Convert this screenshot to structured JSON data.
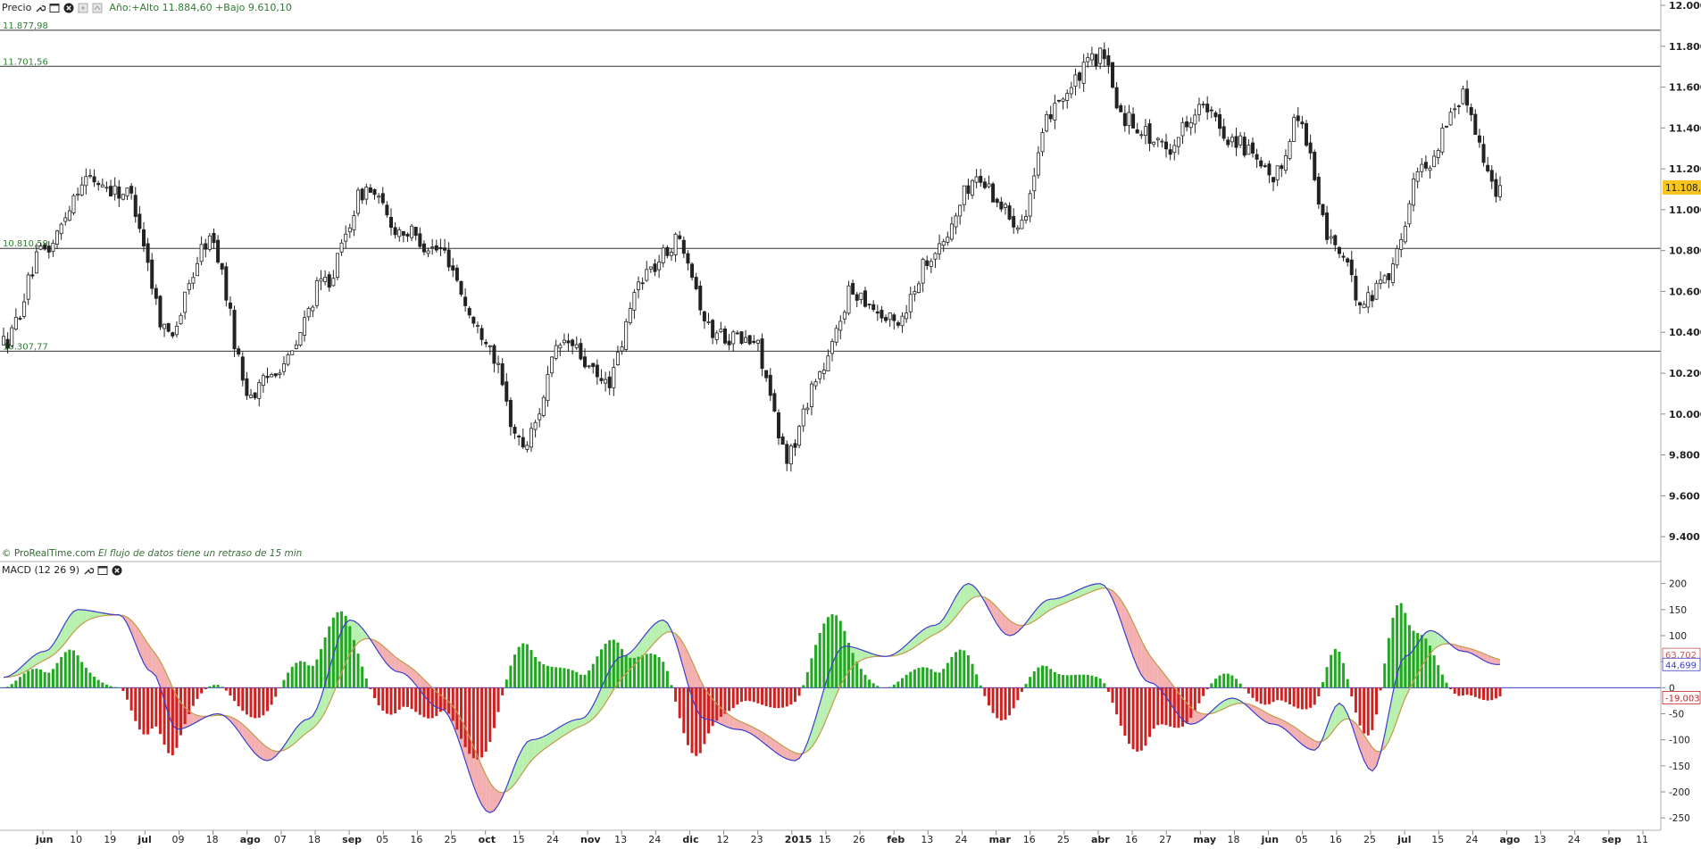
{
  "price_panel": {
    "title": "Precio",
    "info": "Año:+Alto 11.884,60 +Bajo 9.610,10",
    "last_price": "11.108,7",
    "footer_source": "© ProRealTime.com",
    "footer_delay": "El flujo de datos tiene un retraso de 15 min"
  },
  "macd_panel": {
    "title": "MACD (12 26 9)",
    "value_signal": "63,702",
    "value_macd": "44,699",
    "value_hist": "-19,003"
  },
  "colors": {
    "up_candle": "#ffffff",
    "down_candle": "#222222",
    "macd_line": "#3d3dc8",
    "signal_line": "#c49a4a",
    "hist_pos": "#22a722",
    "hist_neg": "#cc2222",
    "fill_pos": "#b8f0b0",
    "fill_neg": "#f4b0b0",
    "level_label": "#2e7d32",
    "last_price_bg": "#f7c51e"
  },
  "icons": [
    "wrench-icon",
    "window-icon",
    "close-icon",
    "copy-icon",
    "settings-icon"
  ],
  "chart_data": [
    {
      "type": "candlestick",
      "name": "Precio",
      "ylim": [
        9300,
        12000
      ],
      "yticks": [
        9400,
        9600,
        9800,
        10000,
        10200,
        10400,
        10600,
        10800,
        11000,
        11200,
        11400,
        11600,
        11800,
        12000
      ],
      "ytick_labels": [
        "9.400",
        "9.600",
        "9.800",
        "10.000",
        "10.200",
        "10.400",
        "10.600",
        "10.800",
        "11.000",
        "11.200",
        "11.400",
        "11.600",
        "11.800",
        "12.000"
      ],
      "horizontal_levels": [
        {
          "value": 11877.98,
          "label": "11.877,98"
        },
        {
          "value": 11701.56,
          "label": "11.701,56"
        },
        {
          "value": 10810.59,
          "label": "10.810,59"
        },
        {
          "value": 10307.77,
          "label": "10.307,77"
        }
      ],
      "last_value": 11108.7,
      "xtick_labels": [
        "jun",
        "10",
        "19",
        "jul",
        "09",
        "18",
        "ago",
        "07",
        "18",
        "sep",
        "05",
        "16",
        "25",
        "oct",
        "15",
        "24",
        "nov",
        "13",
        "24",
        "dic",
        "12",
        "23",
        "2015",
        "15",
        "26",
        "feb",
        "13",
        "24",
        "mar",
        "16",
        "25",
        "abr",
        "16",
        "27",
        "may",
        "18",
        "jun",
        "05",
        "16",
        "25",
        "jul",
        "15",
        "24",
        "ago",
        "13",
        "24",
        "sep",
        "11"
      ],
      "anchors": [
        {
          "i": 0,
          "v": 10350
        },
        {
          "i": 10,
          "v": 10800
        },
        {
          "i": 20,
          "v": 11150
        },
        {
          "i": 30,
          "v": 11080
        },
        {
          "i": 40,
          "v": 10400
        },
        {
          "i": 50,
          "v": 10850
        },
        {
          "i": 60,
          "v": 10100
        },
        {
          "i": 68,
          "v": 10250
        },
        {
          "i": 78,
          "v": 10650
        },
        {
          "i": 88,
          "v": 11100
        },
        {
          "i": 96,
          "v": 10900
        },
        {
          "i": 106,
          "v": 10800
        },
        {
          "i": 116,
          "v": 10400
        },
        {
          "i": 126,
          "v": 9850
        },
        {
          "i": 136,
          "v": 10350
        },
        {
          "i": 146,
          "v": 10150
        },
        {
          "i": 156,
          "v": 10700
        },
        {
          "i": 164,
          "v": 10850
        },
        {
          "i": 172,
          "v": 10400
        },
        {
          "i": 182,
          "v": 10350
        },
        {
          "i": 190,
          "v": 9800
        },
        {
          "i": 198,
          "v": 10200
        },
        {
          "i": 206,
          "v": 10600
        },
        {
          "i": 216,
          "v": 10450
        },
        {
          "i": 226,
          "v": 10800
        },
        {
          "i": 236,
          "v": 11150
        },
        {
          "i": 246,
          "v": 10950
        },
        {
          "i": 256,
          "v": 11550
        },
        {
          "i": 266,
          "v": 11750
        },
        {
          "i": 272,
          "v": 11450
        },
        {
          "i": 282,
          "v": 11300
        },
        {
          "i": 290,
          "v": 11500
        },
        {
          "i": 298,
          "v": 11350
        },
        {
          "i": 308,
          "v": 11150
        },
        {
          "i": 314,
          "v": 11450
        },
        {
          "i": 322,
          "v": 10850
        },
        {
          "i": 330,
          "v": 10550
        },
        {
          "i": 336,
          "v": 10700
        },
        {
          "i": 344,
          "v": 11200
        },
        {
          "i": 354,
          "v": 11550
        },
        {
          "i": 362,
          "v": 11108.7
        }
      ],
      "source_note": "© ProRealTime.com"
    },
    {
      "type": "macd",
      "name": "MACD (12 26 9)",
      "ylim": [
        -260,
        220
      ],
      "yticks": [
        -250,
        -200,
        -150,
        -100,
        -50,
        0,
        50,
        100,
        150,
        200
      ],
      "ytick_labels": [
        "-250",
        "-200",
        "-150",
        "-100",
        "-50",
        "0",
        "50",
        "100",
        "150",
        "200"
      ],
      "macd_anchors": [
        {
          "i": 0,
          "v": 20
        },
        {
          "i": 10,
          "v": 70
        },
        {
          "i": 18,
          "v": 150
        },
        {
          "i": 28,
          "v": 140
        },
        {
          "i": 36,
          "v": 30
        },
        {
          "i": 42,
          "v": -80
        },
        {
          "i": 52,
          "v": -50
        },
        {
          "i": 64,
          "v": -140
        },
        {
          "i": 74,
          "v": -60
        },
        {
          "i": 84,
          "v": 130
        },
        {
          "i": 96,
          "v": 30
        },
        {
          "i": 106,
          "v": -40
        },
        {
          "i": 118,
          "v": -240
        },
        {
          "i": 128,
          "v": -100
        },
        {
          "i": 140,
          "v": -60
        },
        {
          "i": 150,
          "v": 60
        },
        {
          "i": 160,
          "v": 130
        },
        {
          "i": 170,
          "v": -60
        },
        {
          "i": 178,
          "v": -80
        },
        {
          "i": 192,
          "v": -140
        },
        {
          "i": 204,
          "v": 80
        },
        {
          "i": 214,
          "v": 60
        },
        {
          "i": 226,
          "v": 120
        },
        {
          "i": 234,
          "v": 200
        },
        {
          "i": 244,
          "v": 100
        },
        {
          "i": 254,
          "v": 170
        },
        {
          "i": 266,
          "v": 200
        },
        {
          "i": 278,
          "v": 10
        },
        {
          "i": 288,
          "v": -70
        },
        {
          "i": 298,
          "v": -20
        },
        {
          "i": 308,
          "v": -70
        },
        {
          "i": 318,
          "v": -120
        },
        {
          "i": 324,
          "v": -30
        },
        {
          "i": 332,
          "v": -160
        },
        {
          "i": 340,
          "v": 60
        },
        {
          "i": 346,
          "v": 110
        },
        {
          "i": 354,
          "v": 70
        },
        {
          "i": 362,
          "v": 44.7
        }
      ],
      "signal_value": 63.702,
      "macd_value": 44.699,
      "hist_value": -19.003
    }
  ]
}
